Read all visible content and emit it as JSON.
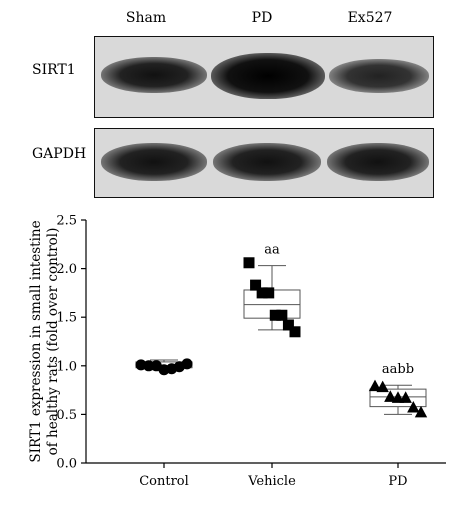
{
  "blot": {
    "lanes": [
      "Sham",
      "PD",
      "Ex527"
    ],
    "rows": [
      {
        "label": "SIRT1",
        "intensity": [
          0.78,
          0.95,
          0.72
        ]
      },
      {
        "label": "GAPDH",
        "intensity": [
          0.82,
          0.82,
          0.8
        ]
      }
    ]
  },
  "chart_data": {
    "type": "scatter",
    "subtype": "box-plot-with-points",
    "categories": [
      "Control",
      "Vehicle",
      "PD"
    ],
    "ylabel_lines": [
      "SIRT1 expression in small intestine",
      "of healthy rats (fold over control)"
    ],
    "xlabel": "",
    "ylim": [
      0.0,
      2.5
    ],
    "yticks": [
      "0.0",
      "0.5",
      "1.0",
      "1.5",
      "2.0",
      "2.5"
    ],
    "grid": false,
    "series": [
      {
        "category": "Control",
        "marker": "circle",
        "points": [
          1.01,
          1.0,
          1.0,
          0.96,
          0.97,
          0.99,
          1.02
        ],
        "box": {
          "min": 0.96,
          "q1": 0.98,
          "median": 1.0,
          "q3": 1.04,
          "max": 1.06
        },
        "annotation": ""
      },
      {
        "category": "Vehicle",
        "marker": "square",
        "points": [
          2.06,
          1.83,
          1.75,
          1.75,
          1.52,
          1.52,
          1.42,
          1.35
        ],
        "box": {
          "min": 1.37,
          "q1": 1.49,
          "median": 1.63,
          "q3": 1.78,
          "max": 2.03
        },
        "annotation": "aa"
      },
      {
        "category": "PD",
        "marker": "triangle",
        "points": [
          0.79,
          0.78,
          0.68,
          0.67,
          0.67,
          0.57,
          0.52
        ],
        "box": {
          "min": 0.5,
          "q1": 0.58,
          "median": 0.68,
          "q3": 0.76,
          "max": 0.8
        },
        "annotation": "aabb"
      }
    ]
  }
}
